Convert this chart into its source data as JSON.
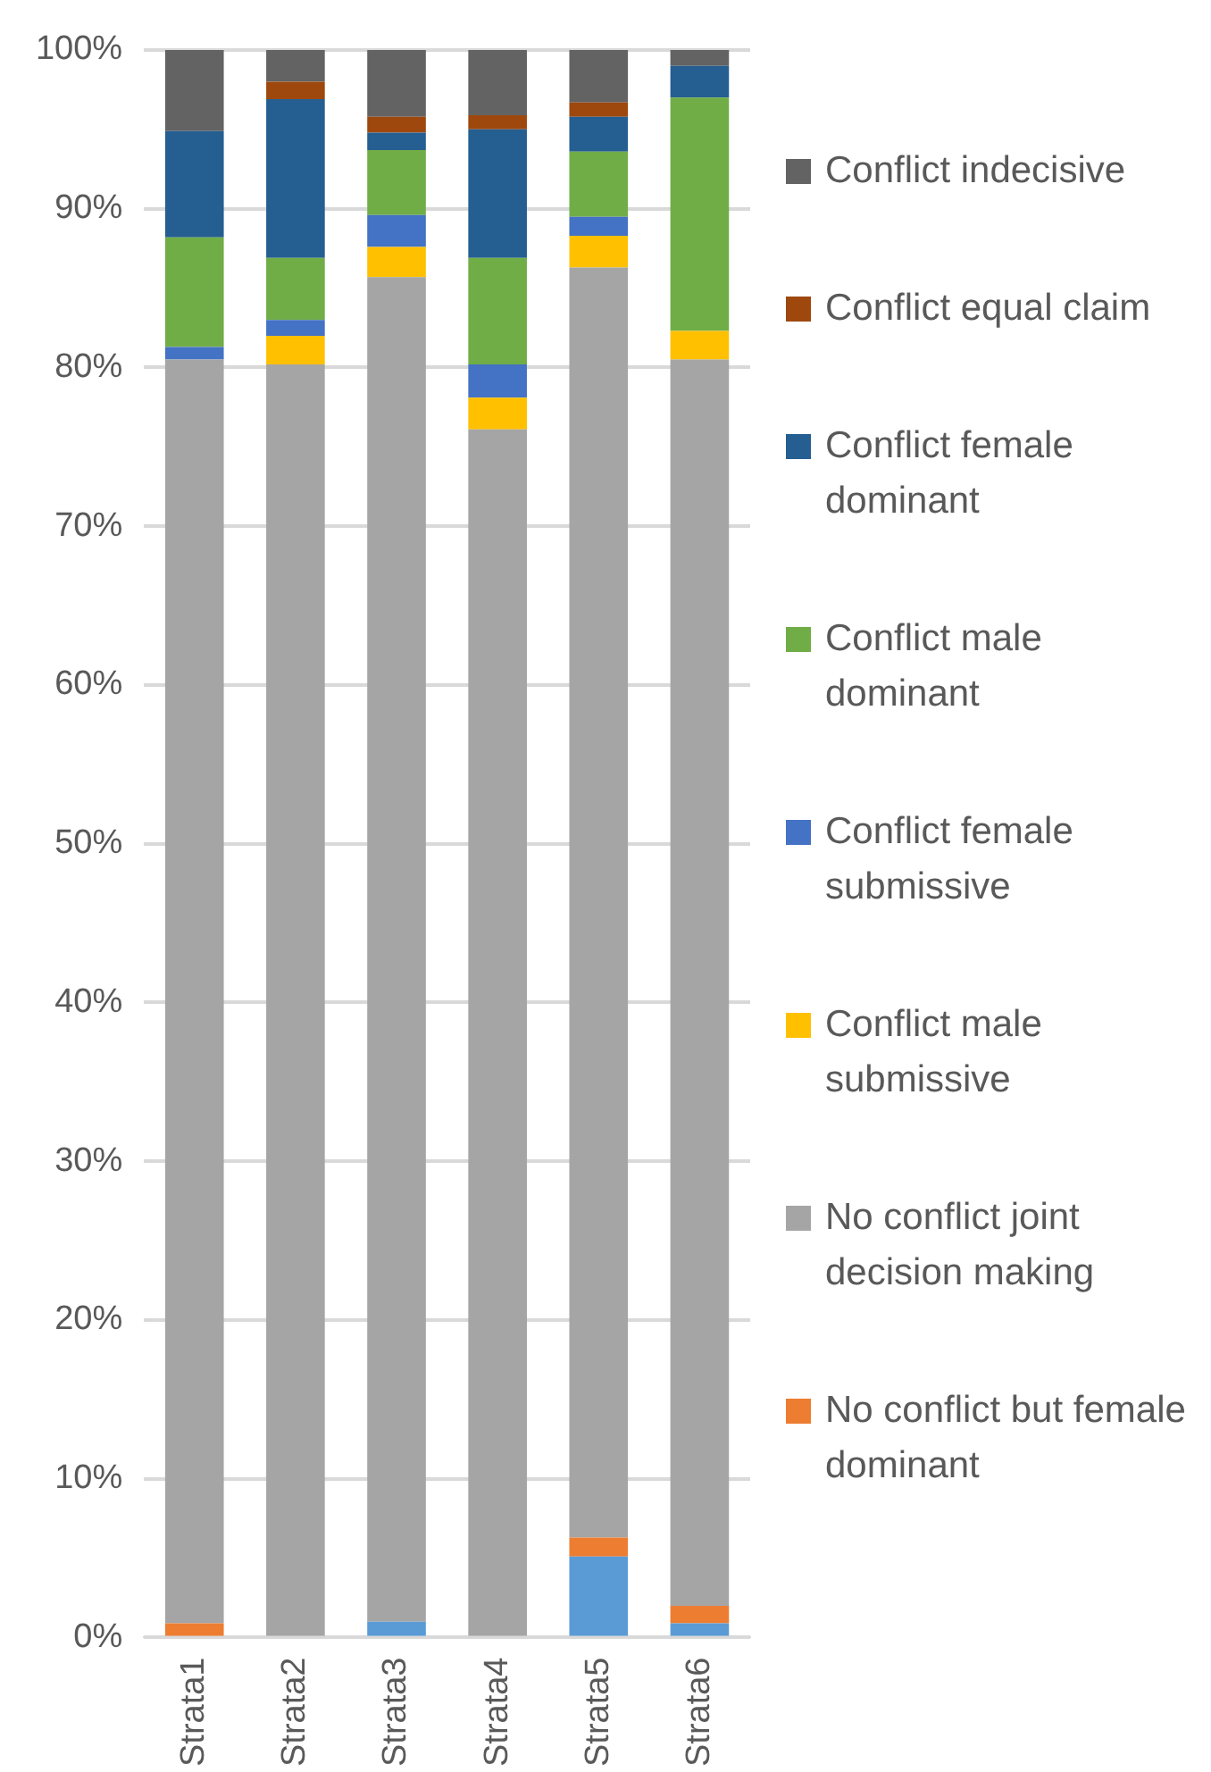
{
  "chart_data": {
    "type": "bar",
    "stacked": true,
    "categories": [
      "Strata1",
      "Strata2",
      "Strata3",
      "Strata4",
      "Strata5",
      "Strata6"
    ],
    "series": [
      {
        "color": "#5b9bd5",
        "values": [
          0,
          0,
          1.0,
          0,
          5.1,
          0.9
        ]
      },
      {
        "name": "No conflict but female dominant",
        "color": "#ed7d31",
        "values": [
          0.9,
          0,
          0,
          0,
          1.2,
          1.1
        ]
      },
      {
        "name": "No conflict joint decision making",
        "color": "#a5a5a5",
        "values": [
          79.6,
          80.2,
          84.7,
          76.1,
          80.0,
          78.5
        ]
      },
      {
        "name": "Conflict male submissive",
        "color": "#ffc000",
        "values": [
          0,
          1.8,
          1.9,
          2.0,
          2.0,
          1.8
        ]
      },
      {
        "name": "Conflict female submissive",
        "color": "#4472c4",
        "values": [
          0.8,
          1.0,
          2.0,
          2.1,
          1.2,
          0
        ]
      },
      {
        "name": "Conflict male dominant",
        "color": "#70ad47",
        "values": [
          6.9,
          3.9,
          4.1,
          6.7,
          4.1,
          14.7
        ]
      },
      {
        "name": "Conflict female dominant",
        "color": "#255e91",
        "values": [
          6.7,
          10.0,
          1.1,
          8.1,
          2.2,
          2.0
        ]
      },
      {
        "name": "Conflict equal claim",
        "color": "#9e480e",
        "values": [
          0,
          1.1,
          1.0,
          0.9,
          0.9,
          0
        ]
      },
      {
        "name": "Conflict indecisive",
        "color": "#636363",
        "values": [
          5.1,
          2.0,
          4.2,
          4.1,
          3.3,
          1.0
        ]
      }
    ],
    "ylim": [
      0,
      100
    ],
    "yticks": [
      {
        "value": 0,
        "label": "0%"
      },
      {
        "value": 10,
        "label": "10%"
      },
      {
        "value": 20,
        "label": "20%"
      },
      {
        "value": 30,
        "label": "30%"
      },
      {
        "value": 40,
        "label": "40%"
      },
      {
        "value": 50,
        "label": "50%"
      },
      {
        "value": 60,
        "label": "60%"
      },
      {
        "value": 70,
        "label": "70%"
      },
      {
        "value": 80,
        "label": "80%"
      },
      {
        "value": 90,
        "label": "90%"
      },
      {
        "value": 100,
        "label": "100%"
      }
    ],
    "grid": "y",
    "legend": "right"
  }
}
